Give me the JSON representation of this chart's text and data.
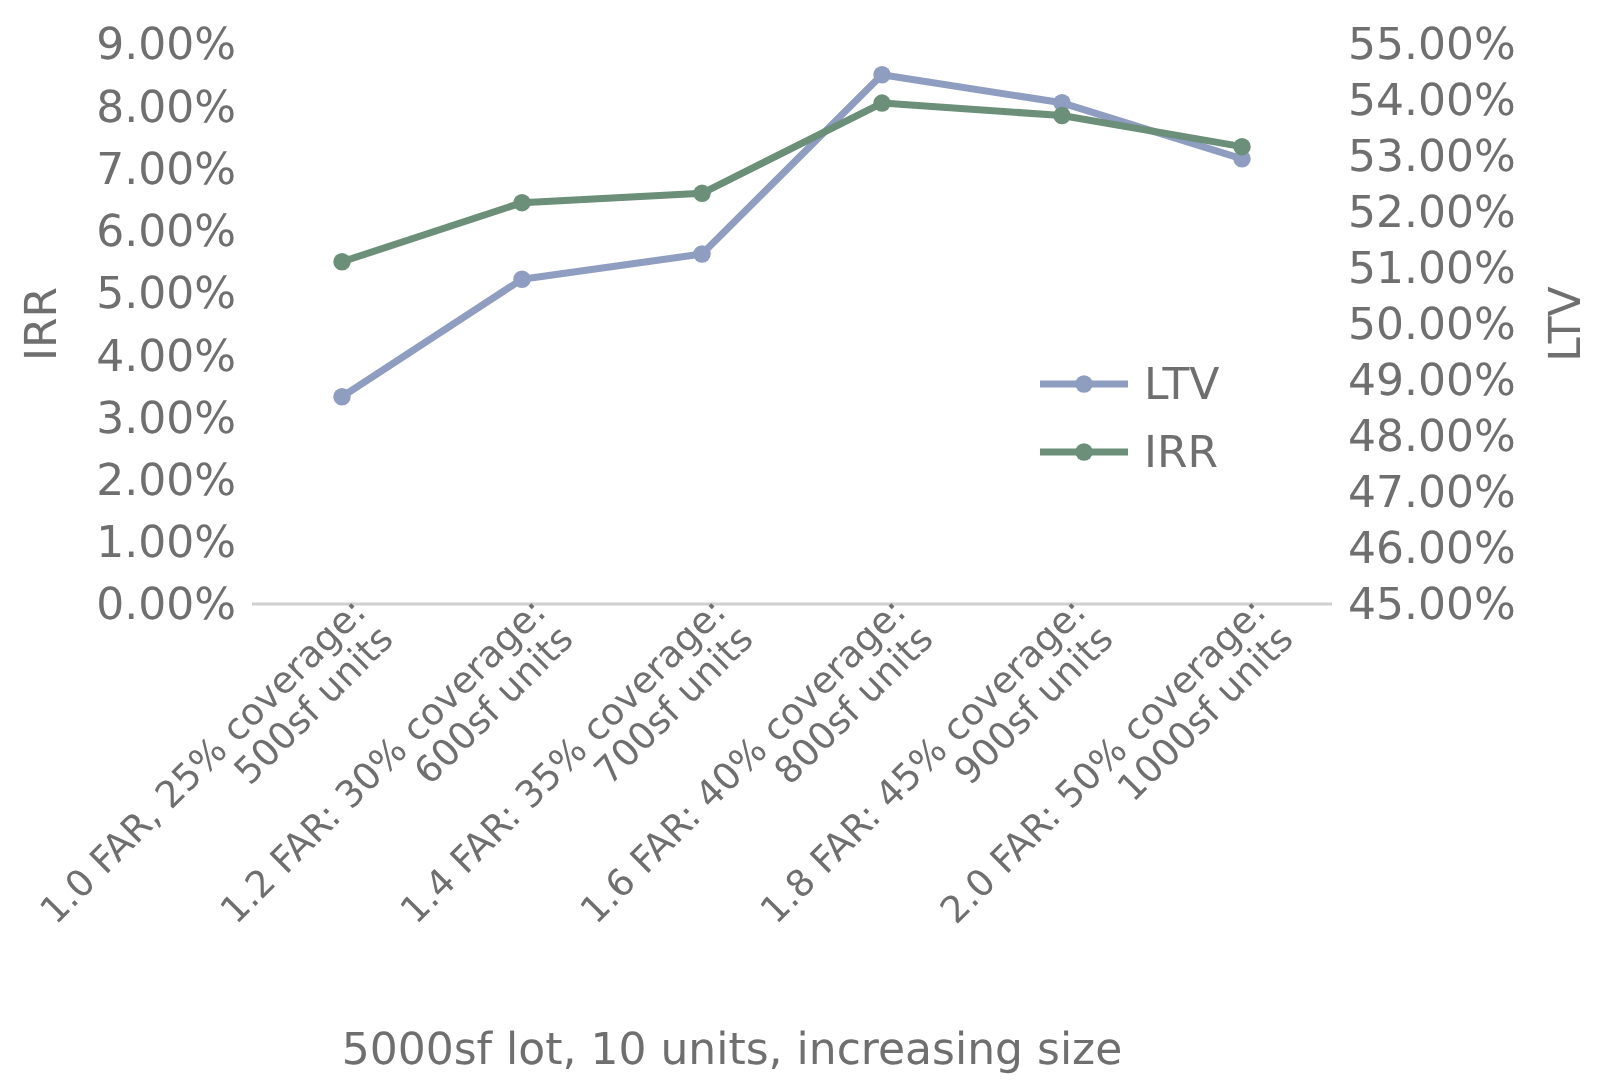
{
  "chart_data": {
    "type": "line",
    "xlabel": "5000sf lot, 10 units, increasing size",
    "ylabel": "IRR",
    "y2label": "LTV",
    "categories": [
      "1.0 FAR, 25% coverage:\n500sf units",
      "1.2 FAR: 30% coverage:\n600sf units",
      "1.4 FAR: 35% coverage:\n700sf units",
      "1.6 FAR: 40% coverage:\n800sf units",
      "1.8 FAR: 45% coverage:\n900sf units",
      "2.0 FAR: 50% coverage:\n1000sf units"
    ],
    "series": [
      {
        "name": "LTV",
        "color": "#8f9dc0",
        "axis": "y2",
        "values": [
          48.7,
          50.8,
          51.25,
          54.45,
          53.95,
          52.95
        ]
      },
      {
        "name": "IRR",
        "color": "#6b8f78",
        "values": [
          5.5,
          6.45,
          6.6,
          8.05,
          7.85,
          7.35
        ]
      }
    ],
    "ylim": [
      0,
      9
    ],
    "yticks": [
      {
        "value": 0,
        "label": "0.00%"
      },
      {
        "value": 1,
        "label": "1.00%"
      },
      {
        "value": 2,
        "label": "2.00%"
      },
      {
        "value": 3,
        "label": "3.00%"
      },
      {
        "value": 4,
        "label": "4.00%"
      },
      {
        "value": 5,
        "label": "5.00%"
      },
      {
        "value": 6,
        "label": "6.00%"
      },
      {
        "value": 7,
        "label": "7.00%"
      },
      {
        "value": 8,
        "label": "8.00%"
      },
      {
        "value": 9,
        "label": "9.00%"
      }
    ],
    "y2lim": [
      45,
      55
    ],
    "y2ticks": [
      {
        "value": 45,
        "label": "45.00%"
      },
      {
        "value": 46,
        "label": "46.00%"
      },
      {
        "value": 47,
        "label": "47.00%"
      },
      {
        "value": 48,
        "label": "48.00%"
      },
      {
        "value": 49,
        "label": "49.00%"
      },
      {
        "value": 50,
        "label": "50.00%"
      },
      {
        "value": 51,
        "label": "51.00%"
      },
      {
        "value": 52,
        "label": "52.00%"
      },
      {
        "value": 53,
        "label": "53.00%"
      },
      {
        "value": 54,
        "label": "54.00%"
      },
      {
        "value": 55,
        "label": "55.00%"
      }
    ],
    "legend": "right",
    "marker": "circle",
    "grid": false
  }
}
